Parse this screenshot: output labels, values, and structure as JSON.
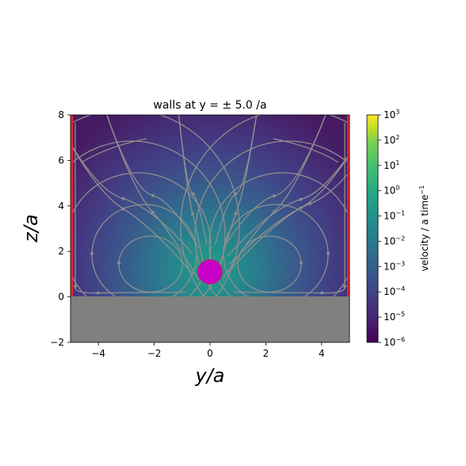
{
  "chart_data": {
    "type": "heatmap",
    "title": "walls at  y = ± 5.0 /a",
    "xlabel": "y/a",
    "ylabel": "z/a",
    "xlim": [
      -5,
      5
    ],
    "ylim": [
      -2,
      8
    ],
    "xticks": [
      -4,
      -2,
      0,
      2,
      4
    ],
    "yticks": [
      -2,
      0,
      2,
      4,
      6,
      8
    ],
    "xtick_labels": [
      "−4",
      "−2",
      "0",
      "2",
      "4"
    ],
    "ytick_labels": [
      "−2",
      "0",
      "2",
      "4",
      "6",
      "8"
    ],
    "wall_y": [
      -5,
      5
    ],
    "floor_z": 0,
    "particle": {
      "y": 0,
      "z": 1.1,
      "radius": 0.45,
      "color": "#c800c8"
    },
    "colorbar": {
      "label": "velocity / a time",
      "label_sup": "−1",
      "scale": "log",
      "range": [
        1e-06,
        1000
      ],
      "tick_base": "10",
      "tick_exponents": [
        "3",
        "2",
        "1",
        "0",
        "−1",
        "−2",
        "−3",
        "−4",
        "−5",
        "−6"
      ],
      "colormap": "viridis"
    },
    "colors": {
      "streamline": "#8f8f8f",
      "floor": "#808080",
      "wall": "#e8262b"
    },
    "grid": false
  }
}
